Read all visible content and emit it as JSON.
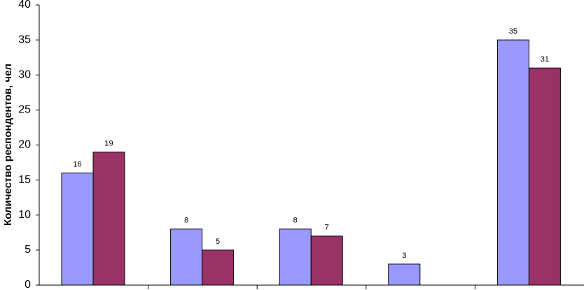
{
  "chart_data": {
    "type": "bar",
    "y_label": "Количество респондентов, чел",
    "categories": [
      null,
      null,
      null,
      null,
      null
    ],
    "series": [
      {
        "color": "#9999ff",
        "values": [
          16,
          8,
          8,
          3,
          35
        ]
      },
      {
        "color": "#993366",
        "values": [
          19,
          5,
          7,
          null,
          31
        ]
      }
    ],
    "ylim": [
      0,
      40
    ],
    "yticks": [
      0,
      5,
      10,
      15,
      20,
      25,
      30,
      35,
      40
    ],
    "grid": false
  }
}
